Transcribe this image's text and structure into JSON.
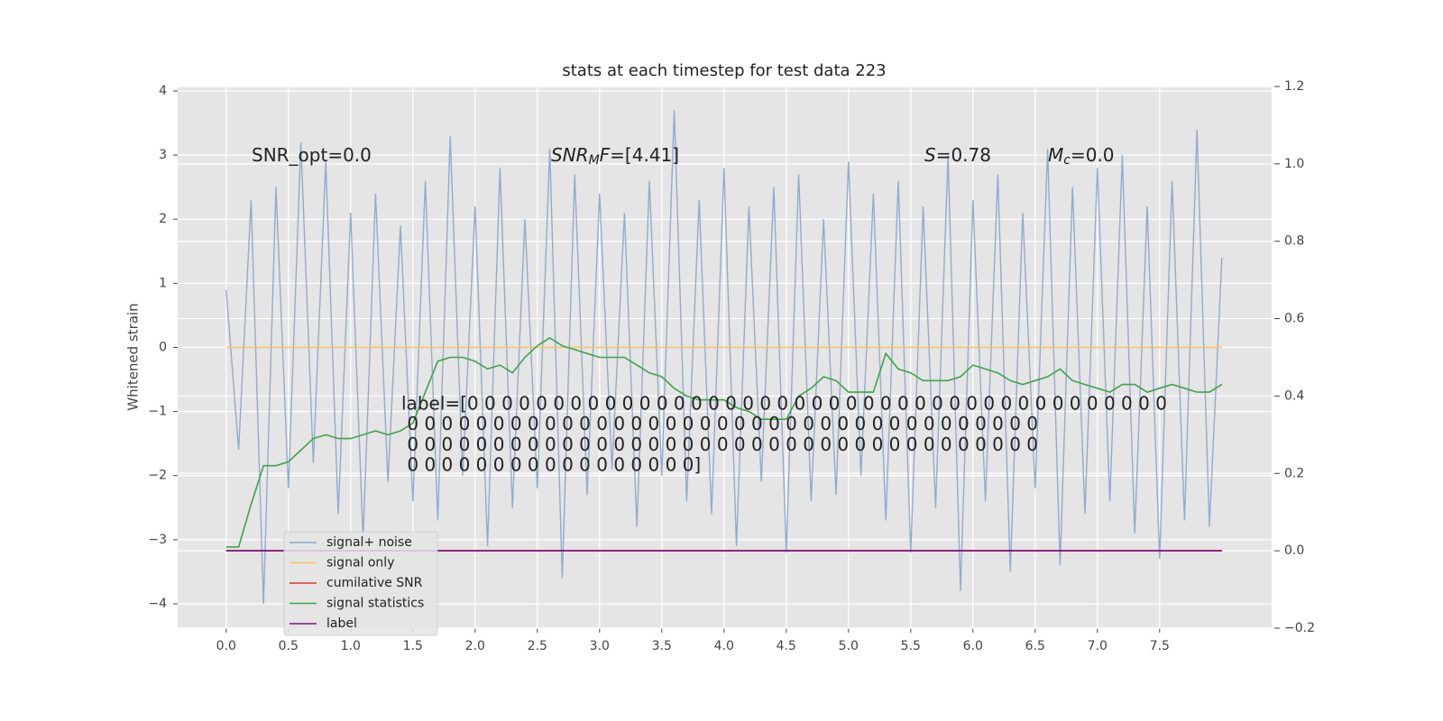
{
  "chart_data": {
    "type": "line",
    "title": "stats at each timestep for test data 223",
    "ylabel": "Whitened strain",
    "x": [
      0,
      0.1,
      0.2,
      0.3,
      0.4,
      0.5,
      0.6,
      0.7,
      0.8,
      0.9,
      1,
      1.1,
      1.2,
      1.3,
      1.4,
      1.5,
      1.6,
      1.7,
      1.8,
      1.9,
      2,
      2.1,
      2.2,
      2.3,
      2.4,
      2.5,
      2.6,
      2.7,
      2.8,
      2.9,
      3,
      3.1,
      3.2,
      3.3,
      3.4,
      3.5,
      3.6,
      3.7,
      3.8,
      3.9,
      4,
      4.1,
      4.2,
      4.3,
      4.4,
      4.5,
      4.6,
      4.7,
      4.8,
      4.9,
      5,
      5.1,
      5.2,
      5.3,
      5.4,
      5.5,
      5.6,
      5.7,
      5.8,
      5.9,
      6,
      6.1,
      6.2,
      6.3,
      6.4,
      6.5,
      6.6,
      6.7,
      6.8,
      6.9,
      7,
      7.1,
      7.2,
      7.3,
      7.4,
      7.5,
      7.6,
      7.7,
      7.8,
      7.9,
      8
    ],
    "series": [
      {
        "name": "signal+ noise",
        "color": "#8fa6cc",
        "axis": "y",
        "values": [
          0.9,
          -1.6,
          2.3,
          -4.0,
          2.5,
          -2.2,
          3.2,
          -1.8,
          2.9,
          -2.6,
          2.1,
          -3.0,
          2.4,
          -2.1,
          1.9,
          -2.4,
          2.6,
          -2.7,
          3.3,
          -2.0,
          2.2,
          -3.1,
          2.8,
          -2.5,
          2.0,
          -2.2,
          3.1,
          -3.6,
          2.7,
          -2.3,
          2.4,
          -1.9,
          2.1,
          -2.8,
          2.6,
          -2.0,
          3.7,
          -2.4,
          2.3,
          -2.6,
          2.8,
          -3.1,
          2.2,
          -2.1,
          2.5,
          -3.2,
          2.7,
          -2.4,
          2.0,
          -2.3,
          2.9,
          -2.0,
          2.4,
          -2.7,
          2.6,
          -3.2,
          2.2,
          -2.5,
          3.0,
          -3.8,
          2.3,
          -2.4,
          2.7,
          -3.5,
          2.1,
          -2.2,
          3.1,
          -3.4,
          2.5,
          -2.6,
          2.8,
          -2.4,
          3.0,
          -2.9,
          2.2,
          -3.3,
          2.6,
          -2.7,
          3.4,
          -2.8,
          1.4
        ]
      },
      {
        "name": "signal only",
        "color": "#f5c468",
        "axis": "y",
        "values": [
          0,
          0,
          0,
          0,
          0,
          0,
          0,
          0,
          0,
          0,
          0,
          0,
          0,
          0,
          0,
          0,
          0,
          0,
          0,
          0,
          0,
          0,
          0,
          0,
          0,
          0,
          0,
          0,
          0,
          0,
          0,
          0,
          0,
          0,
          0,
          0,
          0,
          0,
          0,
          0,
          0,
          0,
          0,
          0,
          0,
          0,
          0,
          0,
          0,
          0,
          0,
          0,
          0,
          0,
          0,
          0,
          0,
          0,
          0,
          0,
          0,
          0,
          0,
          0,
          0,
          0,
          0,
          0,
          0,
          0,
          0,
          0,
          0,
          0,
          0,
          0,
          0,
          0,
          0,
          0,
          0
        ]
      },
      {
        "name": "cumilative SNR",
        "color": "#e8341c",
        "axis": "y2",
        "values": [
          0,
          0,
          0,
          0,
          0,
          0,
          0,
          0,
          0,
          0,
          0,
          0,
          0,
          0,
          0,
          0,
          0,
          0,
          0,
          0,
          0,
          0,
          0,
          0,
          0,
          0,
          0,
          0,
          0,
          0,
          0,
          0,
          0,
          0,
          0,
          0,
          0,
          0,
          0,
          0,
          0,
          0,
          0,
          0,
          0,
          0,
          0,
          0,
          0,
          0,
          0,
          0,
          0,
          0,
          0,
          0,
          0,
          0,
          0,
          0,
          0,
          0,
          0,
          0,
          0,
          0,
          0,
          0,
          0,
          0,
          0,
          0,
          0,
          0,
          0,
          0,
          0,
          0,
          0,
          0,
          0
        ]
      },
      {
        "name": "signal statistics",
        "color": "#3fa34d",
        "axis": "y2",
        "values": [
          0.01,
          0.01,
          0.12,
          0.22,
          0.22,
          0.23,
          0.26,
          0.29,
          0.3,
          0.29,
          0.29,
          0.3,
          0.31,
          0.3,
          0.31,
          0.33,
          0.41,
          0.49,
          0.5,
          0.5,
          0.49,
          0.47,
          0.48,
          0.46,
          0.5,
          0.53,
          0.55,
          0.53,
          0.52,
          0.51,
          0.5,
          0.5,
          0.5,
          0.48,
          0.46,
          0.45,
          0.42,
          0.4,
          0.39,
          0.39,
          0.39,
          0.37,
          0.36,
          0.34,
          0.34,
          0.34,
          0.4,
          0.42,
          0.45,
          0.44,
          0.41,
          0.41,
          0.41,
          0.51,
          0.47,
          0.46,
          0.44,
          0.44,
          0.44,
          0.45,
          0.48,
          0.47,
          0.46,
          0.44,
          0.43,
          0.44,
          0.45,
          0.47,
          0.44,
          0.43,
          0.42,
          0.41,
          0.43,
          0.43,
          0.41,
          0.42,
          0.43,
          0.42,
          0.41,
          0.41,
          0.43
        ]
      },
      {
        "name": "label",
        "color": "#7b1180",
        "axis": "y2",
        "values": [
          0,
          0,
          0,
          0,
          0,
          0,
          0,
          0,
          0,
          0,
          0,
          0,
          0,
          0,
          0,
          0,
          0,
          0,
          0,
          0,
          0,
          0,
          0,
          0,
          0,
          0,
          0,
          0,
          0,
          0,
          0,
          0,
          0,
          0,
          0,
          0,
          0,
          0,
          0,
          0,
          0,
          0,
          0,
          0,
          0,
          0,
          0,
          0,
          0,
          0,
          0,
          0,
          0,
          0,
          0,
          0,
          0,
          0,
          0,
          0,
          0,
          0,
          0,
          0,
          0,
          0,
          0,
          0,
          0,
          0,
          0,
          0,
          0,
          0,
          0,
          0,
          0,
          0,
          0,
          0,
          0
        ]
      }
    ],
    "xlim": [
      -0.39,
      8.4
    ],
    "xticks": [
      {
        "value": 0,
        "label": "0.0"
      },
      {
        "value": 0.5,
        "label": "0.5"
      },
      {
        "value": 1,
        "label": "1.0"
      },
      {
        "value": 1.5,
        "label": "1.5"
      },
      {
        "value": 2,
        "label": "2.0"
      },
      {
        "value": 2.5,
        "label": "2.5"
      },
      {
        "value": 3,
        "label": "3.0"
      },
      {
        "value": 3.5,
        "label": "3.5"
      },
      {
        "value": 4,
        "label": "4.0"
      },
      {
        "value": 4.5,
        "label": "4.5"
      },
      {
        "value": 5,
        "label": "5.0"
      },
      {
        "value": 5.5,
        "label": "5.5"
      },
      {
        "value": 6,
        "label": "6.0"
      },
      {
        "value": 6.5,
        "label": "6.5"
      },
      {
        "value": 7,
        "label": "7.0"
      },
      {
        "value": 7.5,
        "label": "7.5"
      }
    ],
    "ylim": [
      -4.38,
      4.07
    ],
    "yticks": [
      {
        "value": -4,
        "label": "−4"
      },
      {
        "value": -3,
        "label": "−3"
      },
      {
        "value": -2,
        "label": "−2"
      },
      {
        "value": -1,
        "label": "−1"
      },
      0,
      1,
      2,
      3,
      4
    ],
    "y2lim": [
      -0.2,
      1.2
    ],
    "y2ticks": [
      {
        "value": -0.2,
        "label": "−0.2"
      },
      {
        "value": 0,
        "label": "0.0"
      },
      0.2,
      0.4,
      0.6,
      0.8,
      {
        "value": 1,
        "label": "1.0"
      },
      {
        "value": 1.2,
        "label": "1.2"
      }
    ],
    "grid": true,
    "legend": "lower left",
    "annotations": [
      [
        {
          "text": "SNR_opt=0.0"
        }
      ],
      [
        {
          "text": "SNR",
          "style": "italic"
        },
        {
          "text": "M",
          "style": "sub"
        },
        {
          "text": "F",
          "style": "italic"
        },
        {
          "text": "=[4.41]"
        }
      ],
      [
        {
          "text": "S",
          "style": "italic"
        },
        {
          "text": "=0.78"
        }
      ],
      [
        {
          "text": "M",
          "style": "italic"
        },
        {
          "text": "c",
          "style": "sub"
        },
        {
          "text": "=0.0"
        }
      ]
    ],
    "label_text": [
      "label=[0 0 0 0 0 0 0 0 0 0 0 0 0 0 0 0 0 0 0 0 0 0 0 0 0 0 0 0 0 0 0 0 0 0 0 0 0 0 0 0 0",
      " 0 0 0 0 0 0 0 0 0 0 0 0 0 0 0 0 0 0 0 0 0 0 0 0 0 0 0 0 0 0 0 0 0 0 0 0 0",
      " 0 0 0 0 0 0 0 0 0 0 0 0 0 0 0 0 0 0 0 0 0 0 0 0 0 0 0 0 0 0 0 0 0 0 0 0 0",
      " 0 0 0 0 0 0 0 0 0 0 0 0 0 0 0 0 0]"
    ]
  }
}
